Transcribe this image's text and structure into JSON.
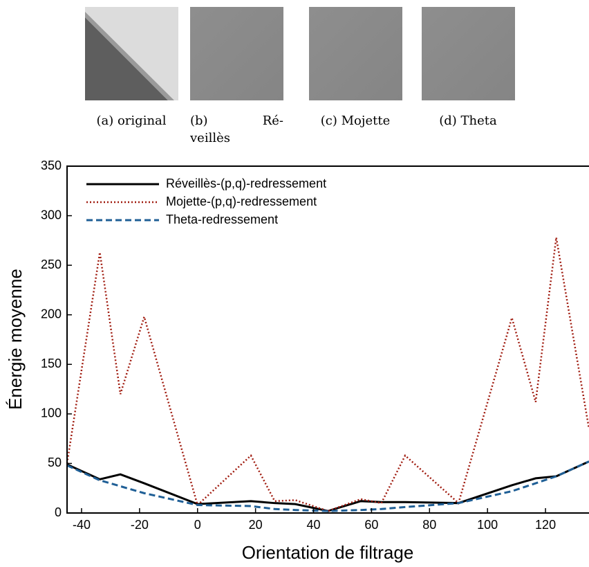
{
  "figures": [
    {
      "caption": [
        "(a) original"
      ]
    },
    {
      "caption": [
        "(b)",
        "Ré-",
        "veillès"
      ]
    },
    {
      "caption": [
        "(c) Mojette"
      ]
    },
    {
      "caption": [
        "(d) Theta"
      ]
    }
  ],
  "chart_data": {
    "type": "line",
    "xlabel": "Orientation de filtrage",
    "ylabel": "Énergie moyenne",
    "x": [
      -45,
      -33.7,
      -26.6,
      -18.4,
      0,
      18.4,
      26.6,
      33.7,
      45,
      56.3,
      63.4,
      71.6,
      90,
      108.4,
      116.6,
      123.7,
      135
    ],
    "series": [
      {
        "name": "Réveillès-(p,q)-redressement",
        "color": "#000000",
        "dash": "solid",
        "values": [
          49,
          34,
          39,
          30,
          9,
          12,
          10,
          9,
          2,
          12,
          11,
          11,
          10,
          28,
          35,
          37,
          52
        ]
      },
      {
        "name": "Mojette-(p,q)-redressement",
        "color": "#a01b0f",
        "dash": "dotted",
        "values": [
          50,
          263,
          120,
          198,
          8,
          58,
          12,
          13,
          2,
          14,
          10,
          58,
          10,
          197,
          112,
          278,
          85
        ]
      },
      {
        "name": "Theta-redressement",
        "color": "#1f5f96",
        "dash": "dashed",
        "values": [
          48,
          33,
          27,
          20,
          8,
          7,
          4,
          3,
          2,
          3,
          4,
          6,
          10,
          22,
          30,
          37,
          52
        ]
      }
    ],
    "xlim": [
      -45,
      135
    ],
    "xticks": [
      -40,
      -20,
      0,
      20,
      40,
      60,
      80,
      100,
      120
    ],
    "ylim": [
      0,
      350
    ],
    "yticks": [
      0,
      50,
      100,
      150,
      200,
      250,
      300,
      350
    ],
    "legend": "upper left"
  }
}
